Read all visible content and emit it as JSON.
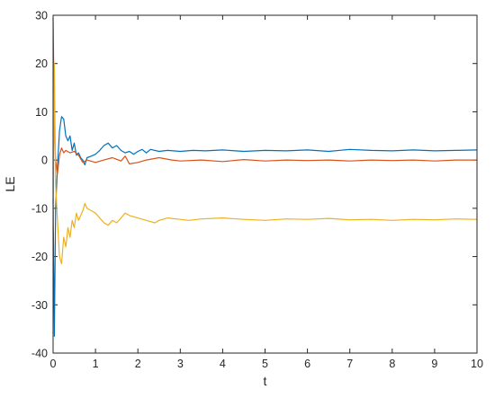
{
  "chart_data": {
    "type": "line",
    "title": "",
    "xlabel": "t",
    "ylabel": "LE",
    "xlim": [
      0,
      10
    ],
    "ylim": [
      -40,
      30
    ],
    "x_ticks": [
      0,
      1,
      2,
      3,
      4,
      5,
      6,
      7,
      8,
      9,
      10
    ],
    "y_ticks": [
      -40,
      -30,
      -20,
      -10,
      0,
      10,
      20,
      30
    ],
    "x_tick_labels": [
      "0",
      "1",
      "2",
      "3",
      "4",
      "5",
      "6",
      "7",
      "8",
      "9",
      "10"
    ],
    "y_tick_labels": [
      "-40",
      "-30",
      "-20",
      "-10",
      "0",
      "10",
      "20",
      "30"
    ],
    "grid": false,
    "legend": "none",
    "series": [
      {
        "color": "#0072BD",
        "points": [
          [
            0,
            -8
          ],
          [
            0.03,
            -36.5
          ],
          [
            0.06,
            -10
          ],
          [
            0.1,
            -2
          ],
          [
            0.15,
            6
          ],
          [
            0.2,
            9
          ],
          [
            0.25,
            8.5
          ],
          [
            0.3,
            5
          ],
          [
            0.35,
            4
          ],
          [
            0.4,
            5
          ],
          [
            0.45,
            2
          ],
          [
            0.5,
            3.5
          ],
          [
            0.55,
            1
          ],
          [
            0.6,
            1.5
          ],
          [
            0.65,
            0.5
          ],
          [
            0.7,
            0
          ],
          [
            0.75,
            -1
          ],
          [
            0.8,
            0.5
          ],
          [
            0.9,
            0.8
          ],
          [
            1.0,
            1.2
          ],
          [
            1.1,
            2
          ],
          [
            1.2,
            3
          ],
          [
            1.3,
            3.5
          ],
          [
            1.4,
            2.5
          ],
          [
            1.5,
            3
          ],
          [
            1.6,
            2
          ],
          [
            1.7,
            1.5
          ],
          [
            1.8,
            1.8
          ],
          [
            1.9,
            1.2
          ],
          [
            2.0,
            1.8
          ],
          [
            2.1,
            2.2
          ],
          [
            2.2,
            1.5
          ],
          [
            2.3,
            2.2
          ],
          [
            2.5,
            1.8
          ],
          [
            2.7,
            2.0
          ],
          [
            3.0,
            1.8
          ],
          [
            3.3,
            2.0
          ],
          [
            3.6,
            1.9
          ],
          [
            4.0,
            2.1
          ],
          [
            4.5,
            1.8
          ],
          [
            5.0,
            2.0
          ],
          [
            5.5,
            1.9
          ],
          [
            6.0,
            2.1
          ],
          [
            6.5,
            1.8
          ],
          [
            7.0,
            2.2
          ],
          [
            7.5,
            2.0
          ],
          [
            8.0,
            1.9
          ],
          [
            8.5,
            2.1
          ],
          [
            9.0,
            1.9
          ],
          [
            9.5,
            2.0
          ],
          [
            10.0,
            2.1
          ]
        ]
      },
      {
        "color": "#D95319",
        "points": [
          [
            0,
            29.5
          ],
          [
            0.03,
            8
          ],
          [
            0.06,
            0
          ],
          [
            0.1,
            -3
          ],
          [
            0.15,
            1
          ],
          [
            0.2,
            2.5
          ],
          [
            0.25,
            1.5
          ],
          [
            0.3,
            2
          ],
          [
            0.4,
            1.5
          ],
          [
            0.5,
            1.8
          ],
          [
            0.6,
            1
          ],
          [
            0.7,
            -0.5
          ],
          [
            0.8,
            0
          ],
          [
            1.0,
            -0.5
          ],
          [
            1.2,
            0
          ],
          [
            1.4,
            0.5
          ],
          [
            1.6,
            -0.2
          ],
          [
            1.7,
            0.8
          ],
          [
            1.8,
            -0.8
          ],
          [
            2.0,
            -0.5
          ],
          [
            2.2,
            0
          ],
          [
            2.5,
            0.5
          ],
          [
            2.8,
            0
          ],
          [
            3.0,
            -0.2
          ],
          [
            3.5,
            0
          ],
          [
            4.0,
            -0.3
          ],
          [
            4.5,
            0.1
          ],
          [
            5.0,
            -0.2
          ],
          [
            5.5,
            0
          ],
          [
            6.0,
            -0.1
          ],
          [
            6.5,
            0
          ],
          [
            7.0,
            -0.2
          ],
          [
            7.5,
            0
          ],
          [
            8.0,
            -0.1
          ],
          [
            8.5,
            0
          ],
          [
            9.0,
            -0.2
          ],
          [
            9.5,
            0
          ],
          [
            10.0,
            0
          ]
        ]
      },
      {
        "color": "#EDB120",
        "points": [
          [
            0,
            -15
          ],
          [
            0.03,
            20
          ],
          [
            0.06,
            -5
          ],
          [
            0.1,
            -12
          ],
          [
            0.15,
            -20
          ],
          [
            0.2,
            -21.5
          ],
          [
            0.25,
            -16
          ],
          [
            0.3,
            -18
          ],
          [
            0.35,
            -14
          ],
          [
            0.4,
            -16
          ],
          [
            0.45,
            -12.5
          ],
          [
            0.5,
            -14
          ],
          [
            0.55,
            -11
          ],
          [
            0.6,
            -12.5
          ],
          [
            0.7,
            -10.5
          ],
          [
            0.75,
            -9
          ],
          [
            0.8,
            -10
          ],
          [
            0.9,
            -10.5
          ],
          [
            1.0,
            -11
          ],
          [
            1.1,
            -12
          ],
          [
            1.2,
            -13
          ],
          [
            1.3,
            -13.5
          ],
          [
            1.4,
            -12.5
          ],
          [
            1.5,
            -13
          ],
          [
            1.6,
            -12
          ],
          [
            1.7,
            -11
          ],
          [
            1.8,
            -11.5
          ],
          [
            2.0,
            -12
          ],
          [
            2.2,
            -12.5
          ],
          [
            2.4,
            -13
          ],
          [
            2.5,
            -12.5
          ],
          [
            2.7,
            -12
          ],
          [
            3.0,
            -12.3
          ],
          [
            3.2,
            -12.5
          ],
          [
            3.5,
            -12.2
          ],
          [
            4.0,
            -12
          ],
          [
            4.5,
            -12.3
          ],
          [
            5.0,
            -12.5
          ],
          [
            5.5,
            -12.2
          ],
          [
            6.0,
            -12.3
          ],
          [
            6.5,
            -12.1
          ],
          [
            7.0,
            -12.4
          ],
          [
            7.5,
            -12.3
          ],
          [
            8.0,
            -12.5
          ],
          [
            8.5,
            -12.3
          ],
          [
            9.0,
            -12.4
          ],
          [
            9.5,
            -12.2
          ],
          [
            10.0,
            -12.3
          ]
        ]
      }
    ]
  }
}
